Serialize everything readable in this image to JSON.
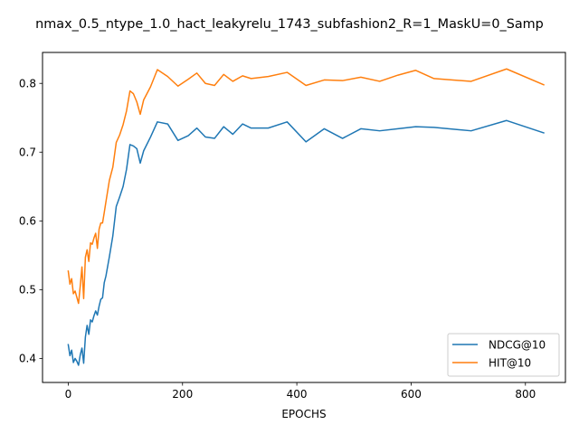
{
  "chart_data": {
    "type": "line",
    "title": "nmax_0.5_ntype_1.0_hact_leakyrelu_1743_subfashion2_R=1_MaskU=0_Samp",
    "xlabel": "EPOCHS",
    "ylabel": "",
    "xlim": [
      -45,
      870
    ],
    "ylim": [
      0.365,
      0.845
    ],
    "xticks": [
      0,
      200,
      400,
      600,
      800
    ],
    "yticks": [
      0.4,
      0.5,
      0.6,
      0.7,
      0.8
    ],
    "ytick_labels": [
      "0.4",
      "0.5",
      "0.6",
      "0.7",
      "0.8"
    ],
    "legend_position": "lower-right",
    "grid": false,
    "series": [
      {
        "name": "NDCG@10",
        "color": "#1f77b4",
        "x": [
          0,
          3,
          6,
          9,
          12,
          15,
          18,
          21,
          24,
          27,
          30,
          33,
          36,
          39,
          42,
          45,
          48,
          51,
          54,
          57,
          60,
          63,
          66,
          72,
          78,
          84,
          90,
          96,
          102,
          108,
          114,
          120,
          126,
          132,
          144,
          156,
          174,
          192,
          210,
          225,
          240,
          256,
          272,
          288,
          305,
          320,
          350,
          383,
          416,
          448,
          480,
          512,
          545,
          577,
          608,
          640,
          705,
          767,
          832
        ],
        "y": [
          0.42,
          0.404,
          0.412,
          0.394,
          0.4,
          0.396,
          0.39,
          0.405,
          0.415,
          0.393,
          0.431,
          0.448,
          0.435,
          0.456,
          0.453,
          0.462,
          0.469,
          0.463,
          0.476,
          0.486,
          0.488,
          0.51,
          0.52,
          0.548,
          0.578,
          0.621,
          0.635,
          0.65,
          0.675,
          0.711,
          0.709,
          0.705,
          0.684,
          0.702,
          0.722,
          0.744,
          0.741,
          0.717,
          0.724,
          0.735,
          0.722,
          0.72,
          0.737,
          0.726,
          0.741,
          0.735,
          0.735,
          0.744,
          0.715,
          0.734,
          0.72,
          0.734,
          0.731,
          0.734,
          0.737,
          0.736,
          0.731,
          0.746,
          0.728
        ]
      },
      {
        "name": "HIT@10",
        "color": "#ff7f0e",
        "x": [
          0,
          3,
          6,
          9,
          12,
          15,
          18,
          21,
          24,
          27,
          30,
          33,
          36,
          39,
          42,
          45,
          48,
          51,
          54,
          57,
          60,
          63,
          66,
          72,
          78,
          84,
          90,
          96,
          102,
          108,
          114,
          120,
          126,
          132,
          144,
          156,
          174,
          192,
          210,
          225,
          240,
          256,
          272,
          288,
          305,
          320,
          350,
          383,
          416,
          448,
          480,
          512,
          545,
          577,
          608,
          640,
          705,
          767,
          832
        ],
        "y": [
          0.527,
          0.508,
          0.516,
          0.494,
          0.498,
          0.489,
          0.48,
          0.505,
          0.533,
          0.487,
          0.547,
          0.558,
          0.541,
          0.568,
          0.566,
          0.575,
          0.582,
          0.56,
          0.588,
          0.597,
          0.597,
          0.612,
          0.628,
          0.659,
          0.678,
          0.714,
          0.725,
          0.74,
          0.76,
          0.789,
          0.785,
          0.773,
          0.755,
          0.776,
          0.795,
          0.82,
          0.81,
          0.796,
          0.806,
          0.815,
          0.8,
          0.797,
          0.813,
          0.803,
          0.811,
          0.807,
          0.81,
          0.816,
          0.797,
          0.805,
          0.804,
          0.809,
          0.803,
          0.812,
          0.819,
          0.807,
          0.803,
          0.821,
          0.798
        ]
      }
    ]
  }
}
